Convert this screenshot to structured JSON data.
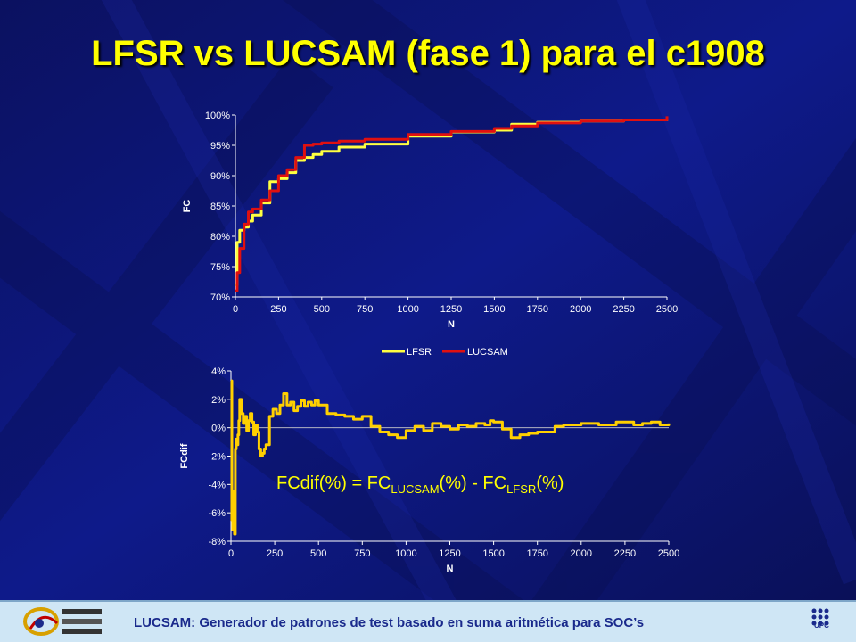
{
  "slide": {
    "title": "LFSR vs LUCSAM (fase 1) para el c1908",
    "footer": "LUCSAM: Generador de patrones de test basado en suma aritmética para SOC’s",
    "logo_left": "LUCSAM",
    "logo_right": "UPC",
    "colors": {
      "background": "#0c1470",
      "title": "#ffff00",
      "footer_bg": "#cfe6f5",
      "footer_text": "#1a2a8c"
    }
  },
  "chart_data": [
    {
      "type": "line",
      "title": "",
      "xlabel": "N",
      "ylabel": "FC",
      "xlim": [
        0,
        2500
      ],
      "ylim": [
        70,
        100
      ],
      "xticks": [
        0,
        250,
        500,
        750,
        1000,
        1250,
        1500,
        1750,
        2000,
        2250,
        2500
      ],
      "yticks": [
        "70%",
        "75%",
        "80%",
        "85%",
        "90%",
        "95%",
        "100%"
      ],
      "ytick_values": [
        70,
        75,
        80,
        85,
        90,
        95,
        100
      ],
      "legend_position": "bottom",
      "series": [
        {
          "name": "LFSR",
          "color": "#ffff40",
          "x": [
            0,
            10,
            25,
            50,
            75,
            100,
            150,
            200,
            250,
            300,
            350,
            400,
            450,
            500,
            600,
            750,
            1000,
            1250,
            1500,
            1600,
            1750,
            2000,
            2250,
            2500
          ],
          "y": [
            72,
            79,
            81,
            81.5,
            82.5,
            83.5,
            85.5,
            89,
            89.5,
            90.5,
            92.5,
            93,
            93.5,
            94,
            94.7,
            95.2,
            96.5,
            97.2,
            97.5,
            98.5,
            98.8,
            99,
            99.2,
            99.5
          ]
        },
        {
          "name": "LUCSAM",
          "color": "#e01010",
          "x": [
            0,
            10,
            25,
            50,
            75,
            100,
            150,
            200,
            250,
            300,
            350,
            400,
            450,
            500,
            600,
            750,
            1000,
            1250,
            1500,
            1600,
            1750,
            2000,
            2250,
            2500
          ],
          "y": [
            71,
            74,
            78,
            82,
            84,
            84.5,
            86,
            87.5,
            90,
            91,
            93,
            95,
            95.2,
            95.4,
            95.7,
            96,
            96.8,
            97.3,
            97.8,
            98.2,
            98.7,
            99,
            99.2,
            99.8
          ]
        }
      ]
    },
    {
      "type": "line",
      "title": "",
      "xlabel": "N",
      "ylabel": "FCdif",
      "xlim": [
        0,
        2500
      ],
      "ylim": [
        -8,
        4
      ],
      "xticks": [
        0,
        250,
        500,
        750,
        1000,
        1250,
        1500,
        1750,
        2000,
        2250,
        2500
      ],
      "yticks": [
        "-8%",
        "-6%",
        "-4%",
        "-2%",
        "0%",
        "2%",
        "4%"
      ],
      "ytick_values": [
        -8,
        -6,
        -4,
        -2,
        0,
        2,
        4
      ],
      "annotation": {
        "prefix": "FCdif(%) = FC",
        "sub1": "LUCSAM",
        "middle": "(%) - FC",
        "sub2": "LFSR",
        "suffix": "(%)"
      },
      "series": [
        {
          "name": "",
          "color": "#ffd000",
          "x": [
            0,
            5,
            10,
            15,
            20,
            25,
            30,
            35,
            40,
            45,
            50,
            60,
            70,
            80,
            90,
            100,
            110,
            120,
            130,
            140,
            150,
            160,
            170,
            180,
            190,
            200,
            220,
            240,
            260,
            280,
            300,
            320,
            340,
            360,
            380,
            400,
            420,
            440,
            460,
            480,
            500,
            550,
            600,
            650,
            700,
            750,
            800,
            850,
            900,
            950,
            1000,
            1050,
            1100,
            1150,
            1200,
            1250,
            1300,
            1350,
            1400,
            1450,
            1480,
            1500,
            1550,
            1600,
            1650,
            1700,
            1750,
            1800,
            1850,
            1900,
            2000,
            2100,
            2200,
            2300,
            2350,
            2400,
            2450,
            2500
          ],
          "y": [
            3.3,
            -6.5,
            -7.2,
            -4.5,
            -7.5,
            -1.5,
            -0.8,
            -1.2,
            -0.5,
            0.5,
            2,
            1,
            0.3,
            0.8,
            -0.2,
            0.5,
            1,
            0.4,
            -0.5,
            0.2,
            -0.3,
            -1.5,
            -2,
            -1.8,
            -1.5,
            -1.2,
            0.8,
            1.3,
            1,
            1.6,
            2.4,
            1.6,
            1.8,
            1.2,
            1.5,
            1.9,
            1.5,
            1.8,
            1.6,
            1.9,
            1.6,
            1,
            0.9,
            0.8,
            0.6,
            0.8,
            0.1,
            -0.3,
            -0.5,
            -0.7,
            -0.2,
            0.1,
            -0.2,
            0.3,
            0.1,
            -0.1,
            0.2,
            0.1,
            0.3,
            0.2,
            0.5,
            0.4,
            -0.1,
            -0.7,
            -0.5,
            -0.4,
            -0.3,
            -0.3,
            0.1,
            0.2,
            0.3,
            0.2,
            0.4,
            0.2,
            0.3,
            0.4,
            0.2,
            0.3
          ]
        }
      ]
    }
  ]
}
